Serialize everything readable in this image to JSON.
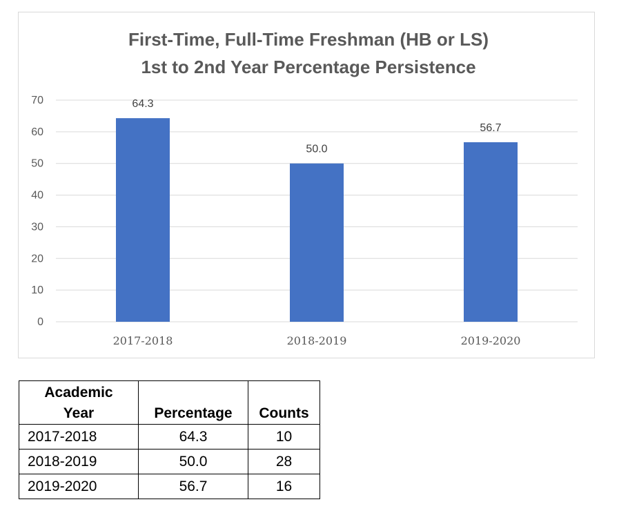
{
  "chart_data": {
    "type": "bar",
    "title_lines": [
      "First-Time, Full-Time Freshman (HB or LS)",
      "1st to 2nd Year Percentage Persistence"
    ],
    "categories": [
      "2017-2018",
      "2018-2019",
      "2019-2020"
    ],
    "values": [
      64.3,
      50.0,
      56.7
    ],
    "data_labels": [
      "64.3",
      "50.0",
      "56.7"
    ],
    "y_ticks": [
      "0",
      "10",
      "20",
      "30",
      "40",
      "50",
      "60",
      "70"
    ],
    "ylim": [
      0,
      70
    ],
    "grid": true,
    "bar_color": "#4472c4",
    "xlabel": "",
    "ylabel": ""
  },
  "table": {
    "headers": {
      "year": "Academic Year",
      "percentage": "Percentage",
      "counts": "Counts"
    },
    "rows": [
      {
        "year": "2017-2018",
        "percentage": "64.3",
        "counts": "10"
      },
      {
        "year": "2018-2019",
        "percentage": "50.0",
        "counts": "28"
      },
      {
        "year": "2019-2020",
        "percentage": "56.7",
        "counts": "16"
      }
    ]
  }
}
